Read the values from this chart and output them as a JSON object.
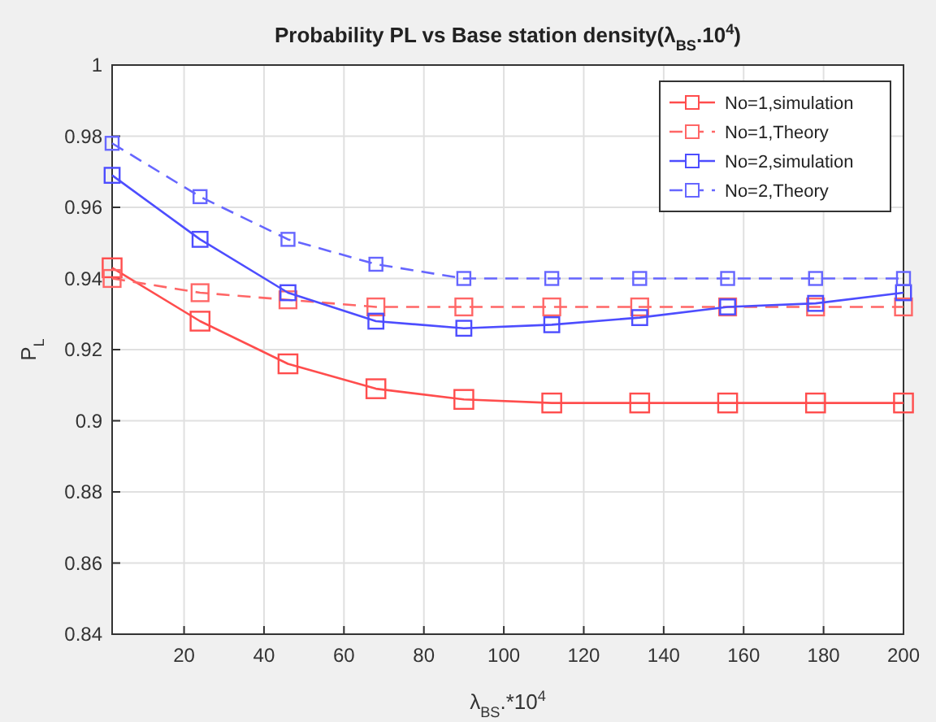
{
  "chart_data": {
    "type": "line",
    "title": "Probability PL  vs  Base station density(λ$_{BS}$.10$^{4}$)",
    "xlabel": "λ$_{BS}$.*10$^{4}$",
    "ylabel": "P$_{L}$",
    "x": [
      2,
      24,
      46,
      68,
      90,
      112,
      134,
      156,
      178,
      200
    ],
    "xlim": [
      2,
      200
    ],
    "xticks": [
      20,
      40,
      60,
      80,
      100,
      120,
      140,
      160,
      180,
      200
    ],
    "ylim": [
      0.84,
      1
    ],
    "yticks": [
      0.84,
      0.86,
      0.88,
      0.9,
      0.92,
      0.94,
      0.96,
      0.98,
      1
    ],
    "grid": true,
    "legend": "top right",
    "marker": "square",
    "series": [
      {
        "name": "No=1,simulation",
        "color": "#ff4d4d",
        "line_style": "solid",
        "values": [
          0.943,
          0.928,
          0.916,
          0.909,
          0.906,
          0.905,
          0.905,
          0.905,
          0.905,
          0.905
        ]
      },
      {
        "name": "No=1,Theory",
        "color": "#ff6666",
        "line_style": "dashed",
        "values": [
          0.94,
          0.936,
          0.934,
          0.932,
          0.932,
          0.932,
          0.932,
          0.932,
          0.932,
          0.932
        ]
      },
      {
        "name": "No=2,simulation",
        "color": "#4d4dff",
        "line_style": "solid",
        "values": [
          0.969,
          0.951,
          0.936,
          0.928,
          0.926,
          0.927,
          0.929,
          0.932,
          0.933,
          0.936
        ]
      },
      {
        "name": "No=2,Theory",
        "color": "#6666ff",
        "line_style": "dashed",
        "values": [
          0.978,
          0.963,
          0.951,
          0.944,
          0.94,
          0.94,
          0.94,
          0.94,
          0.94,
          0.94
        ]
      }
    ]
  }
}
